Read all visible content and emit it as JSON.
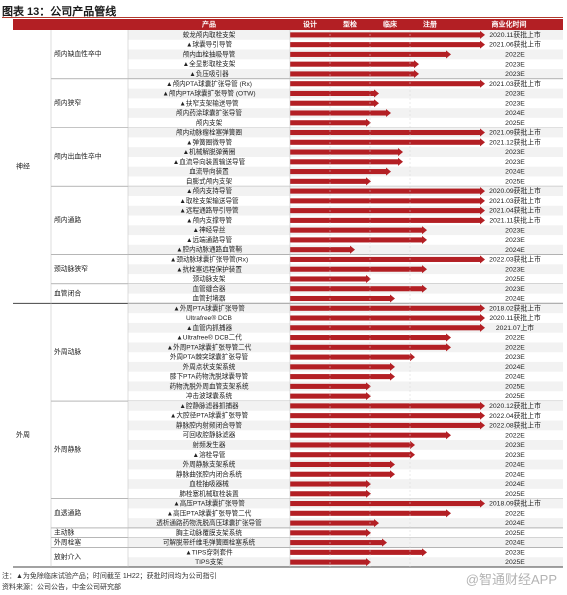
{
  "title": "图表 13：公司产品管线",
  "headers": {
    "product": "产品",
    "design": "设计",
    "animal": "型检",
    "clinical": "临床",
    "registration": "注册",
    "commercial": "商业化时间"
  },
  "notes": {
    "note": "注：▲为免除临床试验产品；时间截至 1H22；获批时间均为公司指引",
    "source": "资料来源：公司公告，中金公司研究部"
  },
  "watermark": "@智通财经APP",
  "colors": {
    "bar": "#b31f24",
    "header_bg": "#b31f24",
    "row_alt": "#f2f2f2"
  },
  "chart_data": {
    "type": "table",
    "stages": [
      "设计",
      "型检",
      "临床",
      "注册",
      "上市"
    ],
    "stage_level_note": "stage: 1=设计, 2=型检, 3=临床, 4=注册, 5=上市/商业化",
    "areas": [
      {
        "name": "神经",
        "groups": [
          {
            "name": "颅内缺血性卒中",
            "rows": [
              {
                "product": "蛟龙颅内取栓支架",
                "stage": 5,
                "time": "2020.11获批上市"
              },
              {
                "product": "▲球囊导引导管",
                "stage": 5,
                "time": "2021.06获批上市"
              },
              {
                "product": "颅内血栓抽吸导管",
                "stage": 4,
                "time": "2022E"
              },
              {
                "product": "▲全显影取栓支架",
                "stage": 3.2,
                "time": "2023E"
              },
              {
                "product": "▲负压吸引器",
                "stage": 3.2,
                "time": "2023E"
              }
            ]
          },
          {
            "name": "颅内狭窄",
            "rows": [
              {
                "product": "▲颅内PTA球囊扩张导管 (Rx)",
                "stage": 5,
                "time": "2021.03获批上市"
              },
              {
                "product": "▲颅内PTA球囊扩张导管 (OTW)",
                "stage": 2.2,
                "time": "2023E"
              },
              {
                "product": "▲扶窄支架输送导管",
                "stage": 2.2,
                "time": "2023E"
              },
              {
                "product": "颅内药涂球囊扩张导管",
                "stage": 2.5,
                "time": "2024E"
              },
              {
                "product": "颅内支架",
                "stage": 2,
                "time": "2025E"
              }
            ]
          },
          {
            "name": "颅内出血性卒中",
            "rows": [
              {
                "product": "颅内动脉瘤栓塞弹簧圈",
                "stage": 5,
                "time": "2021.09获批上市"
              },
              {
                "product": "▲弹簧圈微导管",
                "stage": 5,
                "time": "2021.12获批上市"
              },
              {
                "product": "▲机械解脱弹簧圈",
                "stage": 2.8,
                "time": "2023E"
              },
              {
                "product": "▲血流导向装置输送导管",
                "stage": 2.8,
                "time": "2023E"
              },
              {
                "product": "血流导向装置",
                "stage": 2.5,
                "time": "2024E"
              },
              {
                "product": "自膨式颅内支架",
                "stage": 2,
                "time": "2025E"
              }
            ]
          },
          {
            "name": "颅内通路",
            "rows": [
              {
                "product": "▲颅内支持导管",
                "stage": 5,
                "time": "2020.09获批上市"
              },
              {
                "product": "▲取栓支架输送导管",
                "stage": 5,
                "time": "2021.03获批上市"
              },
              {
                "product": "▲远程通路导引导管",
                "stage": 5,
                "time": "2021.04获批上市"
              },
              {
                "product": "▲颅内支撑导管",
                "stage": 5,
                "time": "2021.11获批上市"
              },
              {
                "product": "▲神经导丝",
                "stage": 3.4,
                "time": "2023E"
              },
              {
                "product": "▲远端通路导管",
                "stage": 3.4,
                "time": "2023E"
              },
              {
                "product": "▲腔内动脉通路血管鞘",
                "stage": 1.6,
                "time": "2024E"
              }
            ]
          },
          {
            "name": "颈动脉狭窄",
            "rows": [
              {
                "product": "▲颈动脉球囊扩张导管(Rx)",
                "stage": 5,
                "time": "2022.03获批上市"
              },
              {
                "product": "▲抗栓塞远程保护装置",
                "stage": 3.4,
                "time": "2023E"
              },
              {
                "product": "颈动脉支架",
                "stage": 2,
                "time": "2025E"
              }
            ]
          },
          {
            "name": "血管闭合",
            "rows": [
              {
                "product": "血管缝合器",
                "stage": 3.4,
                "time": "2023E"
              },
              {
                "product": "血管封堵器",
                "stage": 2.6,
                "time": "2024E"
              }
            ]
          }
        ]
      },
      {
        "name": "外周",
        "groups": [
          {
            "name": "外周动脉",
            "rows": [
              {
                "product": "▲外周PTA球囊扩张导管",
                "stage": 5,
                "time": "2018.02获批上市"
              },
              {
                "product": "Ultrafree® DCB",
                "stage": 5,
                "time": "2020.11获批上市"
              },
              {
                "product": "▲血管内抓捕器",
                "stage": 5,
                "time": "2021.07上市"
              },
              {
                "product": "▲Ultrafree® DCB二代",
                "stage": 4,
                "time": "2022E"
              },
              {
                "product": "▲外周PTA球囊扩张导管二代",
                "stage": 4,
                "time": "2022E"
              },
              {
                "product": "外周PTA棘突球囊扩张导管",
                "stage": 3.1,
                "time": "2023E"
              },
              {
                "product": "外周点状支架系统",
                "stage": 2.6,
                "time": "2024E"
              },
              {
                "product": "膝下PTA药物洗脱球囊导管",
                "stage": 2.6,
                "time": "2024E"
              },
              {
                "product": "药物洗脱外周血管支架系统",
                "stage": 2,
                "time": "2025E"
              },
              {
                "product": "冲击波球囊系统",
                "stage": 2,
                "time": "2025E"
              }
            ]
          },
          {
            "name": "外周静脉",
            "rows": [
              {
                "product": "▲腔静脉滤器抓捕器",
                "stage": 5,
                "time": "2020.12获批上市"
              },
              {
                "product": "▲大腔径PTA球囊扩张导管",
                "stage": 5,
                "time": "2022.04获批上市"
              },
              {
                "product": "静脉腔内射频闭合导管",
                "stage": 5,
                "time": "2022.08获批上市"
              },
              {
                "product": "可回收腔静脉滤器",
                "stage": 4,
                "time": "2022E"
              },
              {
                "product": "射频发生器",
                "stage": 3.1,
                "time": "2023E"
              },
              {
                "product": "▲溶栓导管",
                "stage": 3.1,
                "time": "2023E"
              },
              {
                "product": "外周静脉支架系统",
                "stage": 2.6,
                "time": "2024E"
              },
              {
                "product": "静脉曲张腔内闭合系统",
                "stage": 2.6,
                "time": "2024E"
              },
              {
                "product": "血栓抽吸器械",
                "stage": 2,
                "time": "2024E"
              },
              {
                "product": "肺栓塞机械取栓装置",
                "stage": 2,
                "time": "2025E"
              }
            ]
          },
          {
            "name": "血透通路",
            "rows": [
              {
                "product": "▲高压PTA球囊扩张导管",
                "stage": 5,
                "time": "2018.09获批上市"
              },
              {
                "product": "▲高压PTA球囊扩张导管二代",
                "stage": 4,
                "time": "2022E"
              },
              {
                "product": "透析通路药物洗脱高压球囊扩张导管",
                "stage": 2.2,
                "time": "2024E"
              }
            ]
          },
          {
            "name": "主动脉",
            "rows": [
              {
                "product": "胸主动脉覆膜支架系统",
                "stage": 2,
                "time": "2025E"
              }
            ]
          },
          {
            "name": "外周栓塞",
            "rows": [
              {
                "product": "可解脱带纤维毛弹簧圈栓塞系统",
                "stage": 2.4,
                "time": "2024E"
              }
            ]
          },
          {
            "name": "放射介入",
            "rows": [
              {
                "product": "▲TIPS穿刺套件",
                "stage": 3.4,
                "time": "2023E"
              },
              {
                "product": "TIPS支架",
                "stage": 2,
                "time": "2025E"
              }
            ]
          }
        ]
      }
    ]
  }
}
